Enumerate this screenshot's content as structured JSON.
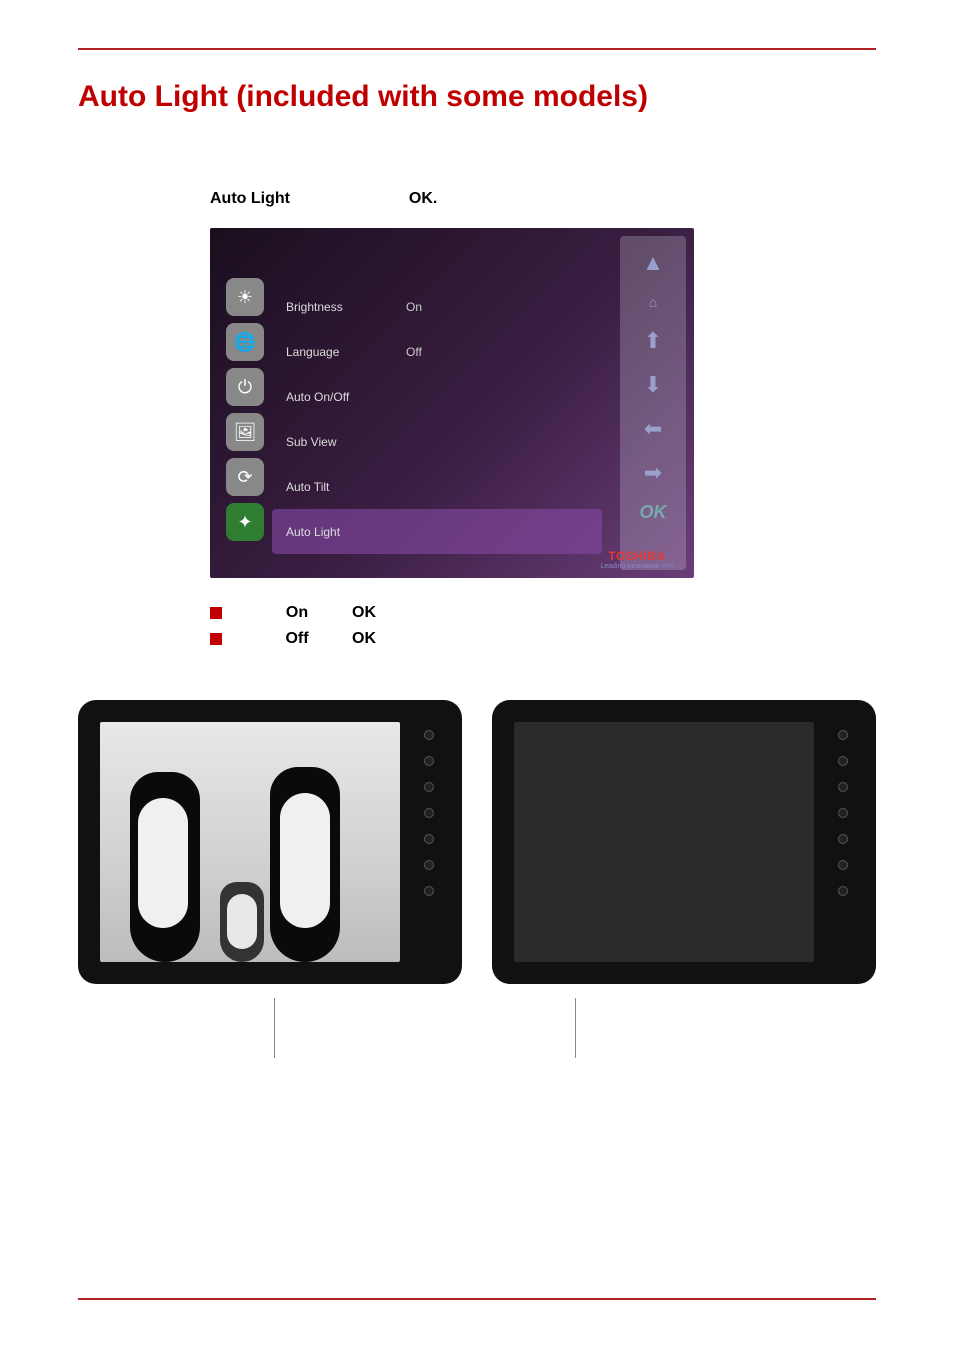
{
  "colors": {
    "rule": "#b22222",
    "title": "#c00000",
    "bullet_square": "#c00000",
    "osd_bg_from": "#1a0e1e",
    "osd_bg_to": "#6a3e7a",
    "osd_text": "#dddddd",
    "osd_sel_bg": "rgba(130,70,160,0.65)",
    "osd_icon_sel": "#2e7d32",
    "frame_bg": "#111111",
    "dark_screen": "#2a2a2a",
    "brand_red": "#e53935"
  },
  "typography": {
    "title_fontsize": 30,
    "body_fontsize": 16,
    "osd_fontsize": 12,
    "brand_fontsize": 12,
    "brand_tag_fontsize": 7
  },
  "title": "Auto Light  (included with some models)",
  "instruction_parts": {
    "a": "Auto Light",
    "b": "OK."
  },
  "osd": {
    "icons": [
      {
        "name": "brightness-icon",
        "glyph": "☀",
        "selected": false
      },
      {
        "name": "language-icon",
        "glyph": "🌐",
        "selected": false
      },
      {
        "name": "power-icon",
        "glyph": "⏻",
        "selected": false
      },
      {
        "name": "subview-icon",
        "glyph": "🖼",
        "selected": false
      },
      {
        "name": "autotilt-icon",
        "glyph": "⟳",
        "selected": false
      },
      {
        "name": "autolight-icon",
        "glyph": "✦",
        "selected": true
      }
    ],
    "rows": [
      {
        "label": "Brightness",
        "value": "On",
        "selected": false
      },
      {
        "label": "Language",
        "value": "Off",
        "selected": false
      },
      {
        "label": "Auto On/Off",
        "value": "",
        "selected": false
      },
      {
        "label": "Sub View",
        "value": "",
        "selected": false
      },
      {
        "label": "Auto Tilt",
        "value": "",
        "selected": false
      },
      {
        "label": "Auto Light",
        "value": "",
        "selected": true
      }
    ],
    "remote_buttons": [
      {
        "name": "up-arrow-icon",
        "glyph": "▲"
      },
      {
        "name": "home-up-icon",
        "glyph": "⌂"
      },
      {
        "name": "arrow-up-icon",
        "glyph": "⬆"
      },
      {
        "name": "arrow-down-icon",
        "glyph": "⬇"
      },
      {
        "name": "arrow-left-icon",
        "glyph": "⬅"
      },
      {
        "name": "arrow-right-icon",
        "glyph": "➡"
      },
      {
        "name": "ok-button-icon",
        "glyph": "OK"
      }
    ],
    "brand": {
      "name": "TOSHIBA",
      "tagline": "Leading Innovation >>>"
    }
  },
  "bullets": [
    {
      "a": "On",
      "b": "OK"
    },
    {
      "a": "Off",
      "b": "OK"
    }
  ],
  "frames": {
    "button_count": 7,
    "left": {
      "caption": "",
      "image": "penguins"
    },
    "right": {
      "caption": "",
      "image": "dark"
    }
  }
}
